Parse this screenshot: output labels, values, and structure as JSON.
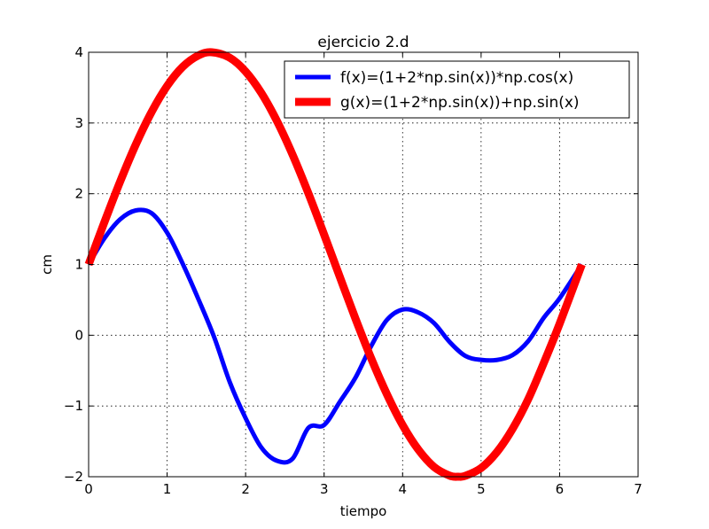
{
  "chart_data": {
    "type": "line",
    "title": "ejercicio 2.d",
    "xlabel": "tiempo",
    "ylabel": "cm",
    "xlim": [
      0,
      7
    ],
    "ylim": [
      -2,
      4
    ],
    "xticks": [
      "0",
      "1",
      "2",
      "3",
      "4",
      "5",
      "6",
      "7"
    ],
    "yticks": [
      "−2",
      "−1",
      "0",
      "1",
      "2",
      "3",
      "4"
    ],
    "grid": true,
    "legend_position": "top-right",
    "series": [
      {
        "name": "f(x)=(1+2*np.sin(x))*np.cos(x)",
        "color": "#0000ff",
        "x": [
          0,
          0.2,
          0.4,
          0.6,
          0.8,
          1.0,
          1.2,
          1.4,
          1.6,
          1.8,
          2.0,
          2.2,
          2.4,
          2.6,
          2.8,
          3.0,
          3.2,
          3.4,
          3.6,
          3.8,
          4.0,
          4.2,
          4.4,
          4.6,
          4.8,
          5.0,
          5.2,
          5.4,
          5.6,
          5.8,
          6.0,
          6.283
        ],
        "y": [
          1.0,
          1.369,
          1.637,
          1.764,
          1.727,
          1.45,
          1.007,
          0.506,
          -0.029,
          -0.668,
          -1.172,
          -1.586,
          -1.775,
          -1.743,
          -1.309,
          -1.269,
          -0.941,
          -0.599,
          -0.152,
          0.217,
          0.364,
          0.322,
          0.172,
          -0.096,
          -0.293,
          -0.348,
          -0.35,
          -0.281,
          -0.083,
          0.25,
          0.522,
          1.0
        ]
      },
      {
        "name": "g(x)=(1+2*np.sin(x))+np.sin(x)",
        "color": "#ff0000",
        "x": [
          0,
          0.2,
          0.4,
          0.6,
          0.8,
          1.0,
          1.2,
          1.4,
          1.571,
          1.8,
          2.0,
          2.2,
          2.4,
          2.6,
          2.8,
          3.0,
          3.2,
          3.4,
          3.6,
          3.8,
          4.0,
          4.2,
          4.4,
          4.6,
          4.712,
          4.8,
          5.0,
          5.2,
          5.4,
          5.6,
          5.8,
          6.0,
          6.283
        ],
        "y": [
          1.0,
          1.596,
          2.168,
          2.694,
          3.152,
          3.524,
          3.796,
          3.956,
          4.0,
          3.922,
          3.728,
          3.425,
          3.026,
          2.547,
          2.005,
          1.423,
          0.825,
          0.233,
          -0.328,
          -0.834,
          -1.27,
          -1.616,
          -1.861,
          -1.985,
          -2.0,
          -1.987,
          -1.877,
          -1.653,
          -1.325,
          -0.904,
          -0.388,
          0.162,
          1.0
        ]
      }
    ]
  }
}
